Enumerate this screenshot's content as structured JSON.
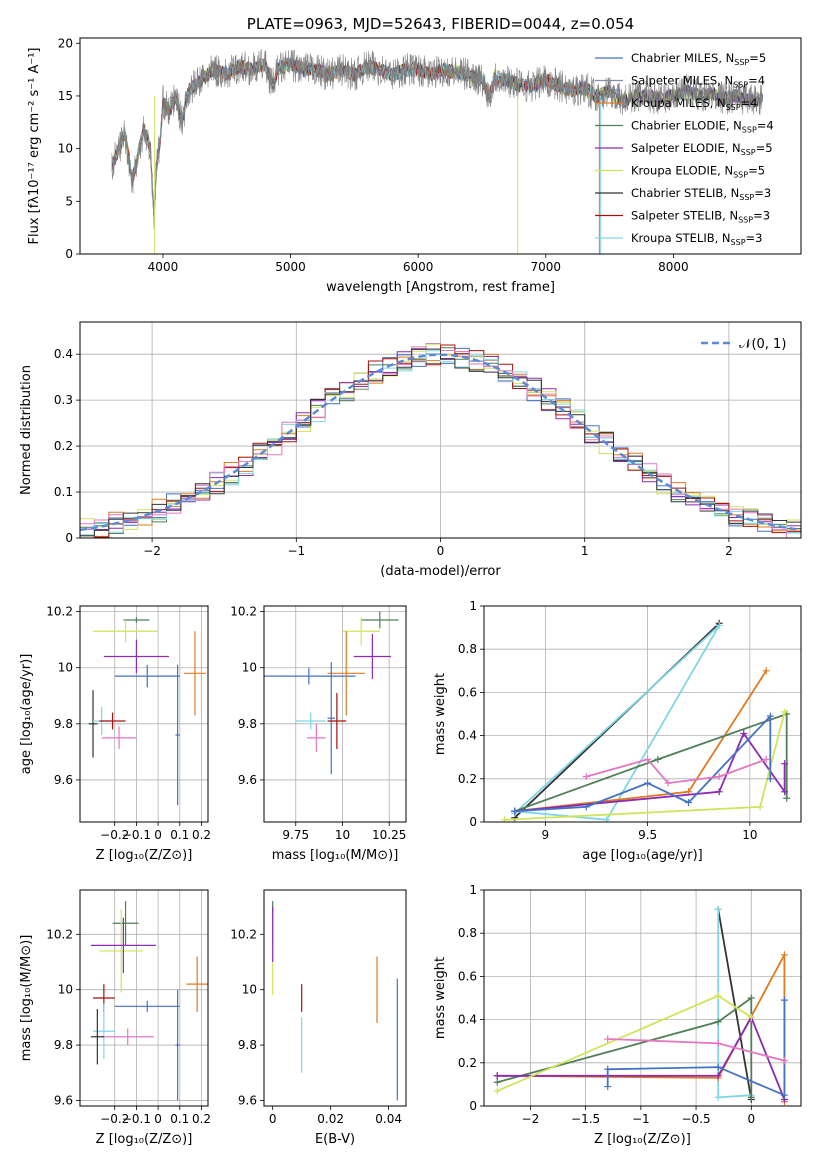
{
  "chart_data": [
    {
      "id": "spectrum",
      "type": "line",
      "title": "PLATE=0963, MJD=52643, FIBERID=0044, z=0.054",
      "xlabel": "wavelength [Angstrom, rest frame]",
      "ylabel": "Flux [fλ10⁻¹⁷ erg cm⁻² s⁻¹ A⁻¹]",
      "xlim": [
        3350,
        9000
      ],
      "ylim": [
        0,
        20.5
      ],
      "xticks": [
        4000,
        5000,
        6000,
        7000,
        8000
      ],
      "yticks": [
        0,
        5,
        10,
        15,
        20
      ],
      "grid": false,
      "legend_position": "upper-right",
      "data_curve": {
        "name": "data",
        "color": "#808080",
        "x": [
          3600,
          3640,
          3700,
          3760,
          3800,
          3850,
          3900,
          3930,
          3950,
          3980,
          4000,
          4050,
          4100,
          4150,
          4200,
          4300,
          4400,
          4500,
          4600,
          4700,
          4800,
          4860,
          4900,
          5000,
          5100,
          5200,
          5300,
          5400,
          5500,
          5600,
          5700,
          5800,
          5900,
          6000,
          6100,
          6200,
          6300,
          6400,
          6500,
          6560,
          6600,
          6700,
          6800,
          6900,
          7000,
          7100,
          7200,
          7300,
          7400,
          7500,
          7600,
          7700,
          7800,
          7900,
          8000,
          8100,
          8200,
          8300,
          8400,
          8500,
          8600,
          8700
        ],
        "y": [
          8.5,
          9.5,
          11.5,
          7.0,
          9.0,
          12.0,
          10.0,
          3.5,
          8.5,
          11.0,
          14.5,
          13.5,
          15.0,
          12.5,
          15.5,
          16.5,
          17.5,
          17.0,
          17.8,
          17.5,
          18.0,
          16.0,
          17.5,
          18.0,
          17.5,
          17.5,
          17.0,
          17.5,
          17.0,
          17.8,
          17.5,
          17.0,
          17.5,
          17.5,
          17.0,
          17.5,
          17.2,
          17.0,
          16.5,
          15.0,
          16.8,
          16.5,
          16.0,
          16.0,
          16.5,
          16.0,
          15.5,
          15.8,
          15.0,
          15.5,
          14.5,
          15.0,
          15.0,
          14.8,
          15.0,
          15.5,
          15.0,
          15.2,
          14.8,
          15.0,
          14.5,
          14.8
        ]
      },
      "series": [
        {
          "name": "Chabrier MILES, N",
          "sub": "SSP",
          "eq": "=5",
          "color": "#4472c4"
        },
        {
          "name": "Salpeter MILES, N",
          "sub": "SSP",
          "eq": "=4",
          "color": "#7f8fa6"
        },
        {
          "name": "Kroupa MILES, N",
          "sub": "SSP",
          "eq": "=4",
          "color": "#e07b20"
        },
        {
          "name": "Chabrier ELODIE, N",
          "sub": "SSP",
          "eq": "=4",
          "color": "#4f7f57"
        },
        {
          "name": "Salpeter ELODIE, N",
          "sub": "SSP",
          "eq": "=5",
          "color": "#8b2cb2"
        },
        {
          "name": "Kroupa ELODIE, N",
          "sub": "SSP",
          "eq": "=5",
          "color": "#d2e35a"
        },
        {
          "name": "Chabrier STELIB, N",
          "sub": "SSP",
          "eq": "=3",
          "color": "#333333"
        },
        {
          "name": "Salpeter STELIB, N",
          "sub": "SSP",
          "eq": "=3",
          "color": "#a81010"
        },
        {
          "name": "Kroupa STELIB, N",
          "sub": "SSP",
          "eq": "=3",
          "color": "#7fd6e6"
        }
      ]
    },
    {
      "id": "residual_hist",
      "type": "histogram",
      "xlabel": "(data-model)/error",
      "ylabel": "Normed distribution",
      "xlim": [
        -2.5,
        2.5
      ],
      "ylim": [
        0,
        0.47
      ],
      "xticks": [
        -2,
        -1,
        0,
        1,
        2
      ],
      "yticks": [
        0.0,
        0.1,
        0.2,
        0.3,
        0.4
      ],
      "grid": true,
      "legend_position": "upper-right",
      "legend": "𝒩(0, 1)",
      "reference_curve": {
        "type": "gaussian",
        "mean": 0,
        "sigma": 1,
        "color": "#5b8bd6",
        "style": "dashed"
      },
      "bin_width": 0.1
    },
    {
      "id": "age_vs_Z",
      "type": "scatter",
      "xlabel": "Z [log₁₀(Z/Z⊙)]",
      "ylabel": "age  [log₁₀(age/yr)]",
      "xlim": [
        -0.36,
        0.23
      ],
      "ylim": [
        9.45,
        10.22
      ],
      "xticks": [
        -0.2,
        -0.1,
        0.0,
        0.1,
        0.2
      ],
      "yticks": [
        9.6,
        9.8,
        10.0,
        10.2
      ],
      "grid": true,
      "points": [
        {
          "x": -0.3,
          "y": 9.8,
          "xerr": 0.02,
          "yerr": 0.12,
          "color": "#333333"
        },
        {
          "x": -0.26,
          "y": 9.81,
          "xerr": 0.04,
          "yerr": 0.05,
          "color": "#7fd6e6"
        },
        {
          "x": -0.1,
          "y": 10.17,
          "xerr": 0.06,
          "yerr": 0.01,
          "color": "#4f7f57"
        },
        {
          "x": -0.15,
          "y": 10.13,
          "xerr": 0.15,
          "yerr": 0.04,
          "color": "#d2e35a"
        },
        {
          "x": -0.1,
          "y": 10.04,
          "xerr": 0.15,
          "yerr": 0.06,
          "color": "#8b2cb2"
        },
        {
          "x": -0.05,
          "y": 9.97,
          "xerr": 0.15,
          "yerr": 0.04,
          "color": "#4472c4"
        },
        {
          "x": 0.17,
          "y": 9.98,
          "xerr": 0.05,
          "yerr": 0.15,
          "color": "#e07b20"
        },
        {
          "x": 0.09,
          "y": 9.76,
          "xerr": 0.01,
          "yerr": 0.25,
          "color": "#4472c4"
        },
        {
          "x": -0.18,
          "y": 9.75,
          "xerr": 0.08,
          "yerr": 0.04,
          "color": "#e377c2"
        },
        {
          "x": -0.21,
          "y": 9.81,
          "xerr": 0.06,
          "yerr": 0.03,
          "color": "#a81010"
        }
      ]
    },
    {
      "id": "age_vs_mass",
      "type": "scatter",
      "xlabel": "mass [log₁₀(M/M⊙)]",
      "ylabel": "",
      "xlim": [
        9.58,
        10.34
      ],
      "ylim": [
        9.45,
        10.22
      ],
      "xticks": [
        9.75,
        10.0,
        10.25
      ],
      "yticks": [
        9.6,
        9.8,
        10.0,
        10.2
      ],
      "grid": true,
      "points": [
        {
          "x": 10.2,
          "y": 10.17,
          "xerr": 0.1,
          "yerr": 0.03,
          "color": "#4f7f57"
        },
        {
          "x": 10.1,
          "y": 10.13,
          "xerr": 0.1,
          "yerr": 0.05,
          "color": "#d2e35a"
        },
        {
          "x": 10.16,
          "y": 10.04,
          "xerr": 0.1,
          "yerr": 0.08,
          "color": "#8b2cb2"
        },
        {
          "x": 9.82,
          "y": 9.97,
          "xerr": 0.25,
          "yerr": 0.03,
          "color": "#4472c4"
        },
        {
          "x": 10.02,
          "y": 9.98,
          "xerr": 0.1,
          "yerr": 0.15,
          "color": "#e07b20"
        },
        {
          "x": 9.94,
          "y": 9.82,
          "xerr": 0.02,
          "yerr": 0.2,
          "color": "#4472c4"
        },
        {
          "x": 9.83,
          "y": 9.81,
          "xerr": 0.08,
          "yerr": 0.03,
          "color": "#7fd6e6"
        },
        {
          "x": 9.97,
          "y": 9.81,
          "xerr": 0.05,
          "yerr": 0.1,
          "color": "#a81010"
        },
        {
          "x": 9.86,
          "y": 9.75,
          "xerr": 0.05,
          "yerr": 0.05,
          "color": "#e377c2"
        }
      ]
    },
    {
      "id": "mass_weight_vs_age",
      "type": "line",
      "xlabel": "age  [log₁₀(age/yr)]",
      "ylabel": "mass weight",
      "xlim": [
        8.7,
        10.25
      ],
      "ylim": [
        0.0,
        1.0
      ],
      "xticks": [
        9.0,
        9.5,
        10.0
      ],
      "yticks": [
        0.0,
        0.2,
        0.4,
        0.6,
        0.8,
        1.0
      ],
      "grid": true,
      "series": [
        {
          "color": "#333333",
          "x": [
            8.85,
            9.85
          ],
          "y": [
            0.02,
            0.92
          ]
        },
        {
          "color": "#7fd6e6",
          "x": [
            8.85,
            9.85,
            9.3,
            8.85
          ],
          "y": [
            0.04,
            0.91,
            0.01,
            0.05
          ]
        },
        {
          "color": "#e07b20",
          "x": [
            8.85,
            9.7,
            10.08
          ],
          "y": [
            0.05,
            0.14,
            0.7
          ]
        },
        {
          "color": "#4f7f57",
          "x": [
            8.85,
            9.55,
            10.18,
            10.18
          ],
          "y": [
            0.05,
            0.29,
            0.5,
            0.11
          ]
        },
        {
          "color": "#8b2cb2",
          "x": [
            8.85,
            9.85,
            9.97,
            10.17,
            10.17
          ],
          "y": [
            0.05,
            0.14,
            0.41,
            0.14,
            0.27
          ]
        },
        {
          "color": "#d2e35a",
          "x": [
            8.8,
            10.05,
            10.17
          ],
          "y": [
            0.01,
            0.07,
            0.51
          ]
        },
        {
          "color": "#4472c4",
          "x": [
            8.85,
            9.2,
            9.5,
            9.7,
            10.1,
            10.1
          ],
          "y": [
            0.05,
            0.07,
            0.18,
            0.09,
            0.49,
            0.2
          ]
        },
        {
          "color": "#e377c2",
          "x": [
            9.2,
            9.5,
            9.6,
            9.85,
            10.08
          ],
          "y": [
            0.21,
            0.29,
            0.18,
            0.21,
            0.29
          ]
        }
      ]
    },
    {
      "id": "mass_vs_Z",
      "type": "scatter",
      "xlabel": "Z [log₁₀(Z/Z⊙)]",
      "ylabel": "mass [log₁₀(M/M⊙)]",
      "xlim": [
        -0.36,
        0.23
      ],
      "ylim": [
        9.58,
        10.36
      ],
      "xticks": [
        -0.2,
        -0.1,
        0.0,
        0.1,
        0.2
      ],
      "yticks": [
        9.6,
        9.8,
        10.0,
        10.2
      ],
      "grid": true,
      "points": [
        {
          "x": -0.15,
          "y": 10.24,
          "xerr": 0.06,
          "yerr": 0.08,
          "color": "#4f7f57"
        },
        {
          "x": -0.17,
          "y": 10.14,
          "xerr": 0.1,
          "yerr": 0.15,
          "color": "#d2e35a"
        },
        {
          "x": -0.16,
          "y": 10.16,
          "xerr": 0.15,
          "yerr": 0.1,
          "color": "#8b2cb2"
        },
        {
          "x": 0.18,
          "y": 10.02,
          "xerr": 0.05,
          "yerr": 0.1,
          "color": "#e07b20"
        },
        {
          "x": -0.05,
          "y": 9.94,
          "xerr": 0.15,
          "yerr": 0.02,
          "color": "#4472c4"
        },
        {
          "x": 0.09,
          "y": 9.8,
          "xerr": 0.01,
          "yerr": 0.2,
          "color": "#4472c4"
        },
        {
          "x": -0.25,
          "y": 9.97,
          "xerr": 0.05,
          "yerr": 0.05,
          "color": "#a81010"
        },
        {
          "x": -0.25,
          "y": 9.85,
          "xerr": 0.05,
          "yerr": 0.1,
          "color": "#7fd6e6"
        },
        {
          "x": -0.14,
          "y": 9.83,
          "xerr": 0.12,
          "yerr": 0.03,
          "color": "#e377c2"
        },
        {
          "x": -0.28,
          "y": 9.83,
          "xerr": 0.03,
          "yerr": 0.1,
          "color": "#333333"
        }
      ]
    },
    {
      "id": "mass_vs_ebv",
      "type": "scatter",
      "xlabel": "E(B-V)",
      "ylabel": "",
      "xlim": [
        -0.003,
        0.046
      ],
      "ylim": [
        9.58,
        10.36
      ],
      "xticks": [
        0.0,
        0.02,
        0.04
      ],
      "yticks": [
        9.6,
        9.8,
        10.0,
        10.2
      ],
      "grid": false,
      "points": [
        {
          "x": 0.0,
          "y": 10.24,
          "xerr": 0.0,
          "yerr": 0.08,
          "color": "#4f7f57"
        },
        {
          "x": 0.0,
          "y": 10.13,
          "xerr": 0.0,
          "yerr": 0.15,
          "color": "#d2e35a"
        },
        {
          "x": 0.0,
          "y": 10.2,
          "xerr": 0.0,
          "yerr": 0.1,
          "color": "#8b2cb2"
        },
        {
          "x": 0.01,
          "y": 9.97,
          "xerr": 0.0,
          "yerr": 0.05,
          "color": "#a81010"
        },
        {
          "x": 0.01,
          "y": 9.8,
          "xerr": 0.0,
          "yerr": 0.1,
          "color": "#7fd6e6"
        },
        {
          "x": 0.036,
          "y": 10.0,
          "xerr": 0.0,
          "yerr": 0.12,
          "color": "#e07b20"
        },
        {
          "x": 0.043,
          "y": 9.82,
          "xerr": 0.0,
          "yerr": 0.22,
          "color": "#4472c4"
        }
      ]
    },
    {
      "id": "mass_weight_vs_Z",
      "type": "line",
      "xlabel": "Z [log₁₀(Z/Z⊙)]",
      "ylabel": "mass weight",
      "xlim": [
        -2.42,
        0.45
      ],
      "ylim": [
        0.0,
        1.0
      ],
      "xticks": [
        -2.0,
        -1.5,
        -1.0,
        -0.5,
        0.0
      ],
      "yticks": [
        0.0,
        0.2,
        0.4,
        0.6,
        0.8,
        1.0
      ],
      "grid": true,
      "series": [
        {
          "color": "#333333",
          "x": [
            -0.3,
            0.0
          ],
          "y": [
            0.91,
            0.03
          ]
        },
        {
          "color": "#7fd6e6",
          "x": [
            -0.3,
            -0.3,
            0.0
          ],
          "y": [
            0.91,
            0.04,
            0.05
          ]
        },
        {
          "color": "#e07b20",
          "x": [
            -2.3,
            -0.3,
            0.3,
            0.3
          ],
          "y": [
            0.14,
            0.13,
            0.7,
            0.02
          ]
        },
        {
          "color": "#4f7f57",
          "x": [
            -2.3,
            -0.3,
            0.0,
            0.0
          ],
          "y": [
            0.11,
            0.39,
            0.5,
            0.04
          ]
        },
        {
          "color": "#8b2cb2",
          "x": [
            -2.3,
            -0.3,
            0.0,
            0.3
          ],
          "y": [
            0.14,
            0.14,
            0.41,
            0.03
          ]
        },
        {
          "color": "#d2e35a",
          "x": [
            -2.3,
            -0.3,
            0.0
          ],
          "y": [
            0.07,
            0.51,
            0.41
          ]
        },
        {
          "color": "#4472c4",
          "x": [
            -1.3,
            -1.3,
            -0.3,
            0.3,
            0.3
          ],
          "y": [
            0.09,
            0.17,
            0.18,
            0.05,
            0.49
          ]
        },
        {
          "color": "#e377c2",
          "x": [
            -1.3,
            -0.3,
            0.3
          ],
          "y": [
            0.31,
            0.29,
            0.21
          ]
        }
      ]
    }
  ]
}
